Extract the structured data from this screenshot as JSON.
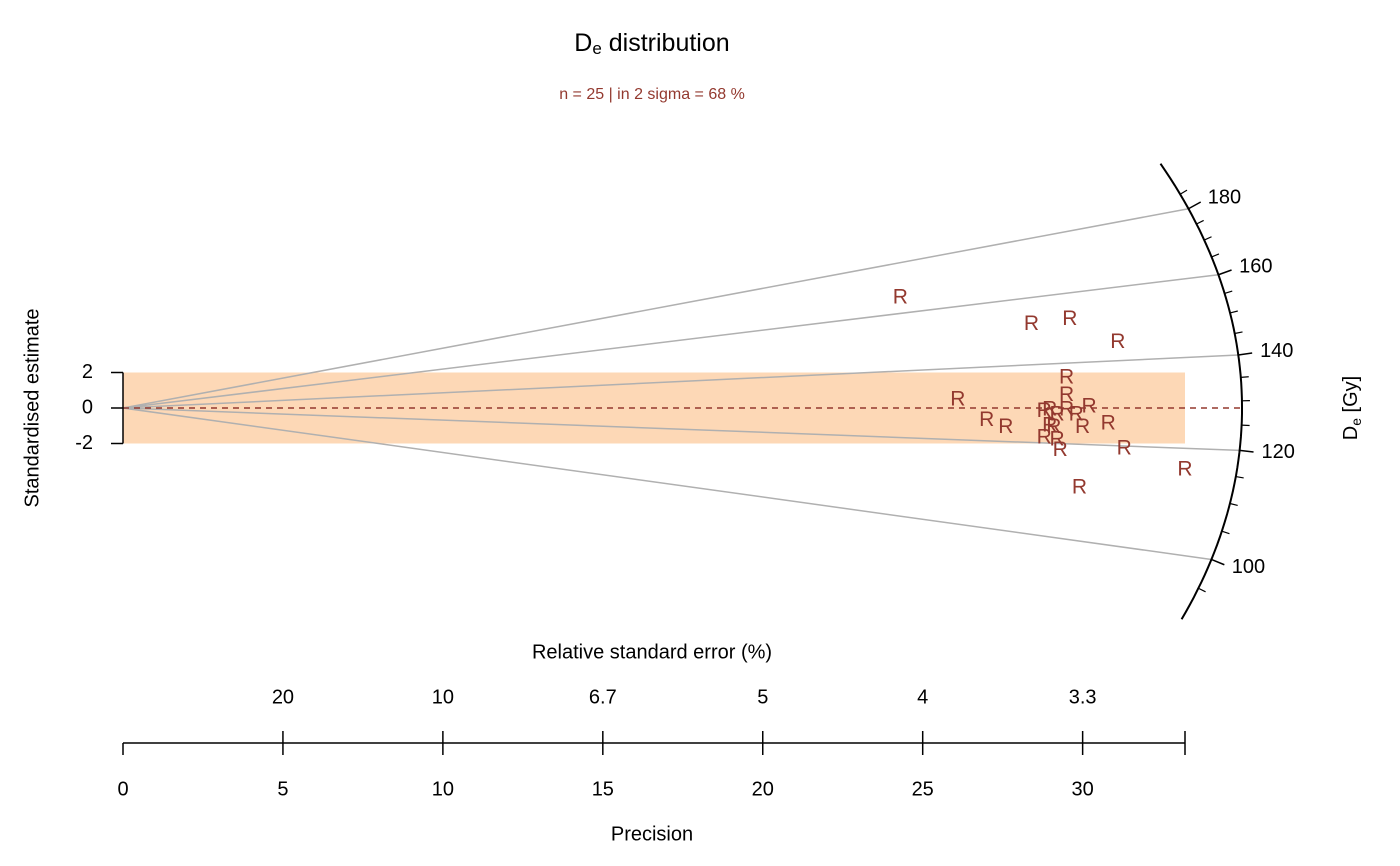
{
  "chart_data": {
    "type": "radial",
    "title": [
      "D",
      "e",
      " distribution"
    ],
    "subtitle": "n = 25 | in 2 sigma = 68 %",
    "xlabel": "Precision",
    "x2label": "Relative standard error (%)",
    "ylabel": "Standardised estimate",
    "y2label": [
      "D",
      "e",
      " [Gy]"
    ],
    "marker": "R",
    "color": "#93392f",
    "line_color": "#b0b0b0",
    "band_color": "#fdd8b6",
    "central_value": 128.5,
    "x": [
      24.3,
      28.4,
      29.6,
      31.1,
      29.5,
      26.1,
      29.5,
      29.5,
      30.2,
      28.97,
      28.8,
      29.2,
      29.8,
      27.0,
      27.6,
      30.8,
      30.0,
      29.1,
      28.97,
      28.8,
      29.3,
      31.3,
      33.2,
      29.9,
      29.2
    ],
    "values": [
      6.2,
      4.7,
      5.0,
      3.7,
      1.7,
      0.45,
      0.7,
      -0.1,
      0.05,
      -0.1,
      -0.2,
      -0.4,
      -0.4,
      -0.7,
      -1.1,
      -0.9,
      -1.1,
      -1.1,
      -1.0,
      -1.7,
      -2.4,
      -2.3,
      -3.5,
      -4.5,
      -1.8
    ],
    "xlim": [
      0,
      33.2
    ],
    "xticks": [
      0,
      5,
      10,
      15,
      20,
      25,
      30
    ],
    "x2ticks": [
      {
        "value": 5,
        "label": "20"
      },
      {
        "value": 10,
        "label": "10"
      },
      {
        "value": 15,
        "label": "6.7"
      },
      {
        "value": 20,
        "label": "5"
      },
      {
        "value": 25,
        "label": "4"
      },
      {
        "value": 30,
        "label": "3.3"
      }
    ],
    "ylim": [
      -10,
      12
    ],
    "yticks": [
      -2,
      0,
      2
    ],
    "band": [
      -2,
      2
    ],
    "zticks": [
      100,
      120,
      140,
      160,
      180
    ],
    "zticks_minor": [
      95,
      105,
      110,
      115,
      125,
      130,
      135,
      145,
      150,
      155,
      165,
      170,
      175,
      185
    ]
  }
}
